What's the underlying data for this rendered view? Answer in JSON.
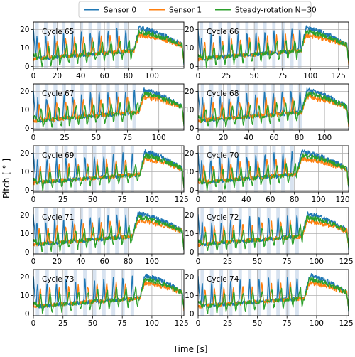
{
  "chart_data": {
    "type": "line",
    "xlabel": "Time [s]",
    "ylabel": "Pitch [ ° ]",
    "legend": {
      "placement": "top-center",
      "entries": [
        "Sensor 0",
        "Sensor 1",
        "Steady-rotation N=30"
      ]
    },
    "colors": {
      "s0": "#1f77b4",
      "s1": "#ff7f0e",
      "s2": "#2ca02c",
      "band": "#b8cce4"
    },
    "grid": true,
    "ylim": [
      -1,
      24
    ],
    "yticks": [
      0,
      10,
      20
    ],
    "panels": [
      {
        "title": "Cycle 65",
        "xlim": [
          0,
          127
        ],
        "xticks": [
          0,
          20,
          40,
          60,
          80,
          100
        ],
        "bands": [
          [
            1.5,
            4.5
          ],
          [
            9,
            12
          ],
          [
            16.5,
            19.5
          ],
          [
            24,
            27
          ],
          [
            31.5,
            34.5
          ],
          [
            39,
            42
          ],
          [
            46.5,
            49.5
          ],
          [
            54,
            57
          ],
          [
            61.5,
            64.5
          ],
          [
            69,
            72
          ],
          [
            76.5,
            79.5
          ]
        ],
        "trans": 85,
        "endT": 127
      },
      {
        "title": "Cycle 66",
        "xlim": [
          0,
          134
        ],
        "xticks": [
          0,
          25,
          50,
          75,
          100,
          125
        ],
        "bands": [
          [
            1.5,
            4.5
          ],
          [
            10,
            13
          ],
          [
            18,
            21
          ],
          [
            26,
            29
          ],
          [
            34,
            37
          ],
          [
            42,
            45
          ],
          [
            50,
            53
          ],
          [
            58,
            61
          ],
          [
            66,
            69
          ],
          [
            74,
            77
          ],
          [
            82,
            85
          ],
          [
            89,
            92
          ]
        ],
        "trans": 92,
        "endT": 134
      },
      {
        "title": "Cycle 67",
        "xlim": [
          0,
          120
        ],
        "xticks": [
          0,
          25,
          50,
          75,
          100
        ],
        "bands": [
          [
            2,
            5
          ],
          [
            9,
            12
          ],
          [
            16,
            19
          ],
          [
            23,
            26
          ],
          [
            30,
            33
          ],
          [
            37,
            40
          ],
          [
            44,
            47
          ],
          [
            51,
            54
          ],
          [
            58,
            61
          ],
          [
            65,
            68
          ],
          [
            72,
            75
          ],
          [
            79,
            82
          ]
        ],
        "trans": 84,
        "endT": 120
      },
      {
        "title": "Cycle 68",
        "xlim": [
          0,
          119
        ],
        "xticks": [
          0,
          20,
          40,
          60,
          80,
          100
        ],
        "bands": [
          [
            2,
            5
          ],
          [
            9,
            12
          ],
          [
            16,
            19
          ],
          [
            23,
            26
          ],
          [
            30,
            33
          ],
          [
            37,
            40
          ],
          [
            44,
            47
          ],
          [
            51,
            54
          ],
          [
            58,
            61
          ],
          [
            65,
            68
          ],
          [
            72,
            75
          ],
          [
            79,
            82
          ]
        ],
        "trans": 82,
        "endT": 119
      },
      {
        "title": "Cycle 69",
        "xlim": [
          0,
          127
        ],
        "xticks": [
          0,
          25,
          50,
          75,
          100,
          125
        ],
        "bands": [
          [
            2,
            5
          ],
          [
            10,
            13
          ],
          [
            18,
            21
          ],
          [
            26,
            29
          ],
          [
            34,
            37
          ],
          [
            42,
            45
          ],
          [
            50,
            53
          ],
          [
            58,
            61
          ],
          [
            66,
            69
          ],
          [
            74,
            77
          ],
          [
            82,
            85
          ]
        ],
        "trans": 90,
        "endT": 127
      },
      {
        "title": "Cycle 70",
        "xlim": [
          0,
          125
        ],
        "xticks": [
          0,
          20,
          40,
          60,
          80,
          100,
          120
        ],
        "bands": [
          [
            1.5,
            4.5
          ],
          [
            9,
            12
          ],
          [
            16.5,
            19.5
          ],
          [
            24,
            27
          ],
          [
            31.5,
            34.5
          ],
          [
            39,
            42
          ],
          [
            46.5,
            49.5
          ],
          [
            54,
            57
          ],
          [
            61.5,
            64.5
          ],
          [
            69,
            72
          ],
          [
            76.5,
            79.5
          ]
        ],
        "trans": 82,
        "endT": 125
      },
      {
        "title": "Cycle 71",
        "xlim": [
          0,
          127
        ],
        "xticks": [
          0,
          20,
          40,
          60,
          80,
          100
        ],
        "bands": [
          [
            1.5,
            4.5
          ],
          [
            9,
            12
          ],
          [
            16.5,
            19.5
          ],
          [
            24,
            27
          ],
          [
            31.5,
            34.5
          ],
          [
            39,
            42
          ],
          [
            46.5,
            49.5
          ],
          [
            54,
            57
          ],
          [
            61.5,
            64.5
          ],
          [
            69,
            72
          ],
          [
            76.5,
            79.5
          ]
        ],
        "trans": 84,
        "endT": 127
      },
      {
        "title": "Cycle 72",
        "xlim": [
          0,
          127
        ],
        "xticks": [
          0,
          25,
          50,
          75,
          100,
          125
        ],
        "bands": [
          [
            2,
            5
          ],
          [
            10,
            13
          ],
          [
            18,
            21
          ],
          [
            26,
            29
          ],
          [
            34,
            37
          ],
          [
            42,
            45
          ],
          [
            50,
            53
          ],
          [
            58,
            61
          ],
          [
            66,
            69
          ],
          [
            74,
            77
          ],
          [
            82,
            85
          ]
        ],
        "trans": 88,
        "endT": 127
      },
      {
        "title": "Cycle 73",
        "xlim": [
          0,
          127
        ],
        "xticks": [
          0,
          25,
          50,
          75,
          100,
          125
        ],
        "bands": [
          [
            2,
            5
          ],
          [
            10,
            13
          ],
          [
            18,
            21
          ],
          [
            26,
            29
          ],
          [
            34,
            37
          ],
          [
            42,
            45
          ],
          [
            50,
            53
          ],
          [
            58,
            61
          ],
          [
            66,
            69
          ],
          [
            74,
            77
          ],
          [
            82,
            85
          ]
        ],
        "trans": 90,
        "endT": 127
      },
      {
        "title": "Cycle 74",
        "xlim": [
          0,
          127
        ],
        "xticks": [
          0,
          25,
          50,
          75,
          100,
          125
        ],
        "bands": [
          [
            2,
            5
          ],
          [
            10,
            13
          ],
          [
            18,
            21
          ],
          [
            26,
            29
          ],
          [
            34,
            37
          ],
          [
            42,
            45
          ],
          [
            50,
            53
          ],
          [
            58,
            61
          ],
          [
            66,
            69
          ],
          [
            74,
            77
          ],
          [
            82,
            85
          ]
        ],
        "trans": 90,
        "endT": 127
      }
    ]
  }
}
